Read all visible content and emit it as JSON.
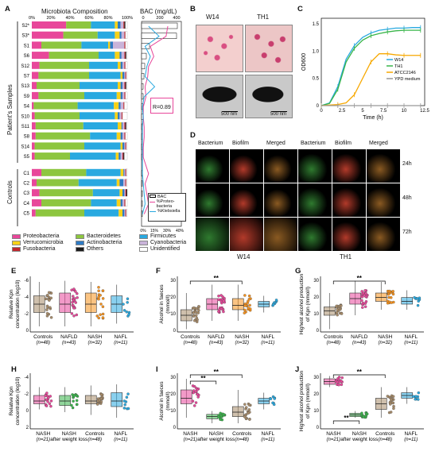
{
  "panels": {
    "a": "A",
    "b": "B",
    "c": "C",
    "d": "D",
    "e": "E",
    "f": "F",
    "g": "G",
    "h": "H",
    "i": "I",
    "j": "J"
  },
  "panel_a": {
    "title": "Microbiota Composition",
    "bac_title": "BAC (mg/dL)",
    "bac_ticks": [
      "0",
      "200",
      "400"
    ],
    "percent_ticks": [
      "0%",
      "20%",
      "40%",
      "60%",
      "80%",
      "100%"
    ],
    "bottom_ticks": [
      "0%",
      "15%",
      "30%",
      "40%"
    ],
    "group_patients": "Patient's Samples",
    "group_controls": "Controls",
    "correlation": "R=0.89",
    "legend_inset": [
      "BAC",
      "%Proteo-bacteria",
      "%Klebsiella"
    ],
    "samples": [
      "S2*",
      "S3*",
      "S1",
      "S6",
      "S12",
      "S7",
      "S13",
      "S9",
      "S4",
      "S10",
      "S11",
      "S8",
      "S14",
      "S5",
      "C1",
      "C2",
      "C3",
      "C4",
      "C5"
    ],
    "legend": [
      "Proteobacteria",
      "Bacteroidetes",
      "Firmicutes",
      "Verrucomicrobia",
      "Actinobacteria",
      "Cyanobacteria",
      "Fusobacteria",
      "Others",
      "Unidentified"
    ],
    "colors": {
      "Proteobacteria": "#e8479a",
      "Bacteroidetes": "#8dc63f",
      "Firmicutes": "#29a9e0",
      "Verrucomicrobia": "#f7d117",
      "Actinobacteria": "#2e7bc4",
      "Cyanobacteria": "#c9b3d9",
      "Fusobacteria": "#c1272d",
      "Others": "#1a1a1a",
      "Unidentified": "#ffffff"
    }
  },
  "panel_b": {
    "strain1": "W14",
    "strain2": "TH1",
    "scale1": "500 nm",
    "scale2": "500 nm"
  },
  "panel_c": {
    "ylabel": "OD600",
    "xlabel": "Time (h)",
    "xticks": [
      "0",
      "2.5",
      "5",
      "7.5",
      "10",
      "12.5"
    ],
    "yticks": [
      "0",
      "0.5",
      "1.0",
      "1.5"
    ],
    "legend": [
      "W14",
      "TH1",
      "ATCC2146",
      "YPD medium"
    ]
  },
  "panel_d": {
    "headers_left": [
      "Bacterium",
      "Biofilm",
      "Merged"
    ],
    "headers_right": [
      "Bacterium",
      "Biofilm",
      "Merged"
    ],
    "times": [
      "24h",
      "48h",
      "72h"
    ],
    "label_left": "W14",
    "label_right": "TH1"
  },
  "panel_e": {
    "ylabel": "Relative Kpn concentration (log10)",
    "yticks": [
      "0",
      "-2",
      "-4",
      "-6"
    ],
    "groups": [
      "Controls",
      "NAFLD",
      "NASH",
      "NAFL"
    ],
    "ns": [
      "(n=48)",
      "(n=43)",
      "(n=32)",
      "(n=11)"
    ]
  },
  "panel_f": {
    "ylabel": "Alcohol in faeces (mmol/l)",
    "yticks": [
      "0",
      "10",
      "20",
      "30"
    ],
    "sig": "**",
    "groups": [
      "Controls",
      "NAFLD",
      "NASH",
      "NAFL"
    ],
    "ns": [
      "(n=48)",
      "(n=43)",
      "(n=32)",
      "(n=11)"
    ]
  },
  "panel_g": {
    "ylabel": "Highest alcohol production of Kpn (mmol/l)",
    "yticks": [
      "0",
      "10",
      "20",
      "30"
    ],
    "sig": "**",
    "groups": [
      "Controls",
      "NAFLD",
      "NASH",
      "NAFL"
    ],
    "ns": [
      "(n=48)",
      "(n=43)",
      "(n=32)",
      "(n=11)"
    ]
  },
  "panel_h": {
    "ylabel": "Relative Kpn concentration (log10)",
    "yticks": [
      "2",
      "0",
      "-2",
      "-4"
    ],
    "groups": [
      "NASH",
      "NASH after weight loss",
      "Controls",
      "NAFL"
    ],
    "ns": [
      "(n=21)",
      "",
      "(n=48)",
      "(n=11)"
    ]
  },
  "panel_i": {
    "ylabel": "Alcohol in faeces (mmol/l)",
    "yticks": [
      "0",
      "10",
      "20",
      "30"
    ],
    "sig": [
      "**",
      "**"
    ],
    "groups": [
      "NASH",
      "NASH after weight loss",
      "Controls",
      "NAFL"
    ],
    "ns": [
      "(n=21)",
      "",
      "(n=48)",
      "(n=11)"
    ]
  },
  "panel_j": {
    "ylabel": "Highest alcohol production of Kpn (mmol/l)",
    "yticks": [
      "0",
      "10",
      "20",
      "30"
    ],
    "sig": [
      "**",
      "**"
    ],
    "groups": [
      "NASH",
      "NASH after weight loss",
      "Controls",
      "NAFL"
    ],
    "ns": [
      "(n=21)",
      "",
      "(n=48)",
      "(n=11)"
    ]
  },
  "chart_data": [
    {
      "type": "bar",
      "title": "Microbiota Composition",
      "categories": [
        "S2*",
        "S3*",
        "S1",
        "S6",
        "S12",
        "S7",
        "S13",
        "S9",
        "S4",
        "S10",
        "S11",
        "S8",
        "S14",
        "S5",
        "C1",
        "C2",
        "C3",
        "C4",
        "C5"
      ],
      "series": [
        {
          "name": "Proteobacteria",
          "values": [
            36,
            33,
            10,
            18,
            8,
            7,
            5,
            7,
            2,
            3,
            4,
            4,
            3,
            3,
            10,
            5,
            8,
            10,
            4
          ]
        },
        {
          "name": "Bacteroidetes",
          "values": [
            26,
            36,
            42,
            52,
            52,
            53,
            45,
            48,
            46,
            47,
            50,
            57,
            52,
            37,
            47,
            44,
            56,
            52,
            51
          ]
        },
        {
          "name": "Firmicutes",
          "values": [
            25,
            18,
            28,
            17,
            30,
            33,
            40,
            34,
            38,
            37,
            36,
            28,
            38,
            48,
            36,
            40,
            28,
            27,
            36
          ]
        },
        {
          "name": "Verrucomicrobia",
          "values": [
            3,
            5,
            2,
            5,
            3,
            2,
            3,
            4,
            5,
            3,
            4,
            4,
            2,
            3,
            3,
            3,
            3,
            4,
            4
          ]
        },
        {
          "name": "Actinobacteria",
          "values": [
            3,
            2,
            3,
            2,
            2,
            2,
            2,
            2,
            2,
            2,
            1,
            2,
            2,
            2,
            1,
            4,
            2,
            2,
            2
          ]
        },
        {
          "name": "Cyanobacteria",
          "values": [
            3,
            3,
            12,
            3,
            2,
            1,
            2,
            2,
            3,
            2,
            2,
            2,
            1,
            2,
            1,
            2,
            1,
            2,
            1
          ]
        },
        {
          "name": "Fusobacteria",
          "values": [
            1,
            1,
            1,
            1,
            1,
            1,
            1,
            1,
            1,
            1,
            1,
            1,
            1,
            1,
            1,
            1,
            1,
            1,
            1
          ]
        },
        {
          "name": "Others",
          "values": [
            1,
            0,
            0,
            1,
            0,
            0,
            1,
            0,
            0,
            0,
            1,
            0,
            0,
            1,
            0,
            0,
            1,
            0,
            0
          ]
        },
        {
          "name": "Unidentified",
          "values": [
            2,
            2,
            2,
            1,
            2,
            1,
            1,
            2,
            3,
            5,
            1,
            2,
            1,
            3,
            1,
            1,
            0,
            2,
            1
          ]
        }
      ],
      "ylim": [
        0,
        100
      ]
    },
    {
      "type": "line",
      "title": "",
      "xlabel": "Time (h)",
      "ylabel": "OD600",
      "x": [
        0,
        1,
        2,
        3,
        4,
        5,
        6,
        7,
        8,
        9,
        10,
        11,
        12
      ],
      "series": [
        {
          "name": "W14",
          "values": [
            0.0,
            0.05,
            0.35,
            0.85,
            1.1,
            1.25,
            1.33,
            1.38,
            1.4,
            1.42,
            1.42,
            1.43,
            1.43
          ]
        },
        {
          "name": "TH1",
          "values": [
            0.0,
            0.04,
            0.3,
            0.8,
            1.05,
            1.2,
            1.28,
            1.32,
            1.35,
            1.37,
            1.38,
            1.38,
            1.38
          ]
        },
        {
          "name": "ATCC2146",
          "values": [
            0.0,
            0.01,
            0.02,
            0.05,
            0.2,
            0.5,
            0.8,
            0.95,
            0.95,
            0.93,
            0.92,
            0.92,
            0.92
          ]
        },
        {
          "name": "YPD medium",
          "values": [
            0,
            0,
            0,
            0,
            0,
            0,
            0,
            0,
            0,
            0,
            0,
            0,
            0
          ]
        }
      ],
      "xlim": [
        0,
        12.5
      ],
      "ylim": [
        0,
        1.6
      ]
    }
  ]
}
